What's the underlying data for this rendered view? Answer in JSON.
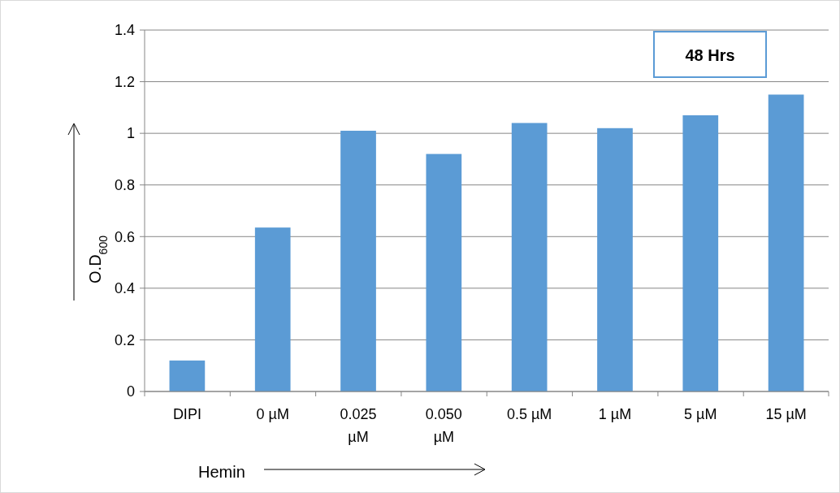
{
  "chart_data": {
    "type": "bar",
    "ylabel": "O.D$_{600}$",
    "xlabel": "Hemin",
    "annotations": [
      "48 Hrs"
    ],
    "categories": [
      "DIPI",
      "0 µM",
      "0.025 µM",
      "0.050 µM",
      "0.5 µM",
      "1 µM",
      "5 µM",
      "15 µM"
    ],
    "values": [
      0.12,
      0.635,
      1.01,
      0.92,
      1.04,
      1.02,
      1.07,
      1.15
    ],
    "color": "#5b9bd5",
    "ylim": [
      0,
      1.4
    ],
    "yticks": [
      0,
      0.2,
      0.4,
      0.6,
      0.8,
      1,
      1.2,
      1.4
    ],
    "grid": "y"
  }
}
